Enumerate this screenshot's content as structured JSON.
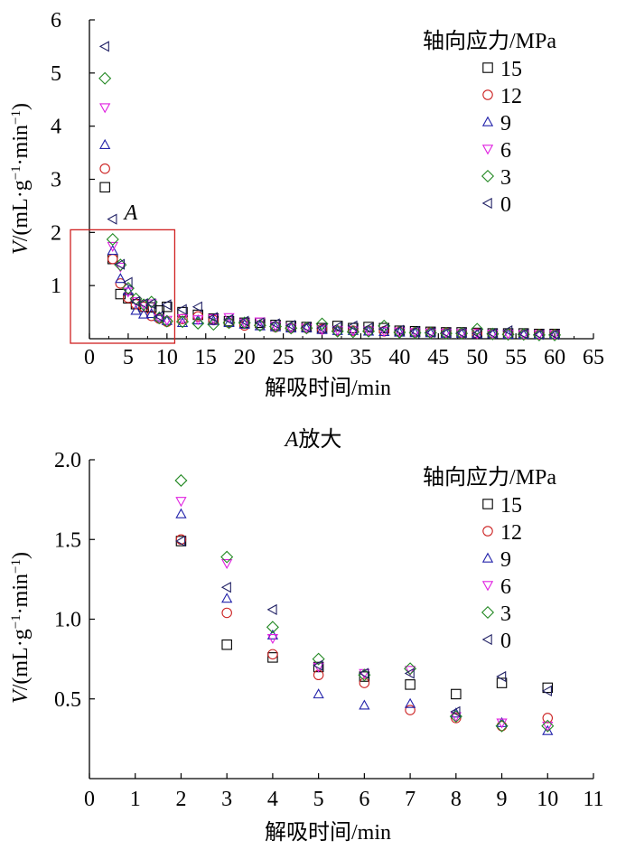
{
  "chart_data": [
    {
      "type": "scatter",
      "title": "",
      "xlabel": "解吸时间/min",
      "ylabel": "V/(mL·g⁻¹·min⁻¹)",
      "xlim": [
        0,
        65
      ],
      "ylim": [
        0,
        6
      ],
      "x_ticks": [
        "0",
        "5",
        "10",
        "15",
        "20",
        "25",
        "30",
        "35",
        "40",
        "45",
        "50",
        "55",
        "60",
        "65"
      ],
      "y_ticks": [
        "1",
        "2",
        "3",
        "4",
        "5",
        "6"
      ],
      "legend_title": "轴向应力/MPa",
      "legend_position": "top-right",
      "inset_label": "A",
      "inset_box": {
        "x": [
          0,
          11
        ],
        "y": [
          0,
          2.05
        ]
      },
      "series": [
        {
          "name": "15",
          "marker": "square",
          "color": "#000000",
          "x": [
            2,
            3,
            4,
            5,
            6,
            7,
            8,
            9,
            10,
            12,
            14,
            16,
            18,
            20,
            22,
            24,
            26,
            28,
            30,
            32,
            34,
            36,
            38,
            40,
            42,
            44,
            46,
            48,
            50,
            52,
            54,
            56,
            58,
            60
          ],
          "y": [
            2.85,
            1.5,
            0.84,
            0.76,
            0.65,
            0.6,
            0.59,
            0.53,
            0.6,
            0.5,
            0.45,
            0.38,
            0.33,
            0.3,
            0.3,
            0.26,
            0.24,
            0.22,
            0.2,
            0.24,
            0.2,
            0.22,
            0.2,
            0.15,
            0.14,
            0.13,
            0.12,
            0.12,
            0.11,
            0.1,
            0.1,
            0.1,
            0.09,
            0.09
          ]
        },
        {
          "name": "12",
          "marker": "circle",
          "color": "#cc2222",
          "x": [
            2,
            3,
            4,
            5,
            6,
            7,
            8,
            9,
            10,
            12,
            14,
            16,
            18,
            20,
            22,
            24,
            26,
            28,
            30,
            32,
            34,
            36,
            38,
            40,
            42,
            44,
            46,
            48,
            50,
            52,
            54,
            56,
            58,
            60
          ],
          "y": [
            3.2,
            1.5,
            1.04,
            0.77,
            0.65,
            0.6,
            0.43,
            0.38,
            0.32,
            0.37,
            0.42,
            0.35,
            0.3,
            0.25,
            0.25,
            0.22,
            0.2,
            0.2,
            0.18,
            0.15,
            0.15,
            0.15,
            0.14,
            0.13,
            0.12,
            0.12,
            0.11,
            0.1,
            0.1,
            0.09,
            0.09,
            0.08,
            0.08,
            0.08
          ]
        },
        {
          "name": "9",
          "marker": "triangle-up",
          "color": "#2222aa",
          "x": [
            2,
            3,
            4,
            5,
            6,
            7,
            8,
            9,
            10,
            12,
            14,
            16,
            18,
            20,
            22,
            24,
            26,
            28,
            30,
            32,
            34,
            36,
            38,
            40,
            42,
            44,
            46,
            48,
            50,
            52,
            54,
            56,
            58,
            60
          ],
          "y": [
            3.65,
            1.66,
            1.13,
            0.9,
            0.53,
            0.46,
            0.47,
            0.41,
            0.34,
            0.3,
            0.35,
            0.34,
            0.3,
            0.27,
            0.24,
            0.22,
            0.2,
            0.2,
            0.17,
            0.15,
            0.15,
            0.14,
            0.13,
            0.12,
            0.11,
            0.11,
            0.1,
            0.1,
            0.09,
            0.09,
            0.08,
            0.08,
            0.08,
            0.08
          ]
        },
        {
          "name": "6",
          "marker": "triangle-down",
          "color": "#e020e0",
          "x": [
            2,
            3,
            4,
            5,
            6,
            7,
            8,
            9,
            10,
            12,
            14,
            16,
            18,
            20,
            22,
            24,
            26,
            28,
            30,
            32,
            34,
            36,
            38,
            40,
            42,
            44,
            46,
            48,
            50,
            52,
            54,
            56,
            58,
            60
          ],
          "y": [
            4.35,
            1.74,
            1.35,
            0.88,
            0.7,
            0.65,
            0.66,
            0.38,
            0.35,
            0.38,
            0.36,
            0.38,
            0.4,
            0.3,
            0.32,
            0.24,
            0.2,
            0.2,
            0.17,
            0.16,
            0.15,
            0.15,
            0.14,
            0.13,
            0.12,
            0.11,
            0.11,
            0.1,
            0.1,
            0.09,
            0.09,
            0.08,
            0.08,
            0.08
          ]
        },
        {
          "name": "3",
          "marker": "diamond",
          "color": "#228822",
          "x": [
            2,
            3,
            4,
            5,
            6,
            7,
            8,
            9,
            10,
            12,
            14,
            16,
            18,
            20,
            22,
            24,
            26,
            28,
            30,
            32,
            34,
            36,
            38,
            40,
            42,
            44,
            46,
            48,
            50,
            52,
            54,
            56,
            58,
            60
          ],
          "y": [
            4.9,
            1.87,
            1.39,
            0.95,
            0.75,
            0.64,
            0.69,
            0.39,
            0.33,
            0.32,
            0.29,
            0.27,
            0.3,
            0.3,
            0.25,
            0.23,
            0.2,
            0.2,
            0.28,
            0.14,
            0.13,
            0.14,
            0.24,
            0.12,
            0.11,
            0.11,
            0.1,
            0.1,
            0.18,
            0.09,
            0.08,
            0.08,
            0.07,
            0.07
          ]
        },
        {
          "name": "0",
          "marker": "triangle-left",
          "color": "#222266",
          "x": [
            2,
            3,
            4,
            5,
            6,
            7,
            8,
            9,
            10,
            12,
            14,
            16,
            18,
            20,
            22,
            24,
            26,
            28,
            30,
            32,
            34,
            36,
            38,
            40,
            42,
            44,
            46,
            48,
            50,
            52,
            54,
            56,
            58,
            60
          ],
          "y": [
            5.5,
            2.25,
            1.4,
            1.06,
            0.7,
            0.66,
            0.66,
            0.42,
            0.64,
            0.55,
            0.6,
            0.4,
            0.36,
            0.33,
            0.3,
            0.28,
            0.25,
            0.22,
            0.2,
            0.22,
            0.24,
            0.2,
            0.18,
            0.16,
            0.14,
            0.12,
            0.11,
            0.11,
            0.1,
            0.1,
            0.15,
            0.09,
            0.08,
            0.08
          ]
        }
      ]
    },
    {
      "type": "scatter",
      "title": "A放大",
      "xlabel": "解吸时间/min",
      "ylabel": "V/(mL·g⁻¹·min⁻¹)",
      "xlim": [
        0,
        11
      ],
      "ylim": [
        0,
        2.0
      ],
      "x_ticks": [
        "0",
        "1",
        "2",
        "3",
        "4",
        "5",
        "6",
        "7",
        "8",
        "9",
        "10",
        "11"
      ],
      "y_ticks": [
        "0.5",
        "1.0",
        "1.5",
        "2.0"
      ],
      "legend_title": "轴向应力/MPa",
      "legend_position": "top-right",
      "series": [
        {
          "name": "15",
          "marker": "square",
          "color": "#000000",
          "x": [
            2,
            3,
            4,
            5,
            6,
            7,
            8,
            9,
            10
          ],
          "y": [
            1.49,
            0.84,
            0.76,
            0.7,
            0.64,
            0.59,
            0.53,
            0.6,
            0.57
          ]
        },
        {
          "name": "12",
          "marker": "circle",
          "color": "#cc2222",
          "x": [
            2,
            3,
            4,
            5,
            6,
            7,
            8,
            9,
            10
          ],
          "y": [
            1.5,
            1.04,
            0.78,
            0.65,
            0.6,
            0.43,
            0.38,
            0.33,
            0.38
          ]
        },
        {
          "name": "9",
          "marker": "triangle-up",
          "color": "#2222aa",
          "x": [
            2,
            3,
            4,
            5,
            6,
            7,
            8,
            9,
            10
          ],
          "y": [
            1.66,
            1.13,
            0.9,
            0.53,
            0.46,
            0.47,
            0.41,
            0.35,
            0.3
          ]
        },
        {
          "name": "6",
          "marker": "triangle-down",
          "color": "#e020e0",
          "x": [
            2,
            3,
            4,
            5,
            6,
            7,
            8,
            9,
            10
          ],
          "y": [
            1.74,
            1.35,
            0.88,
            0.7,
            0.66,
            0.68,
            0.39,
            0.35,
            0.33
          ]
        },
        {
          "name": "3",
          "marker": "diamond",
          "color": "#228822",
          "x": [
            2,
            3,
            4,
            5,
            6,
            7,
            8,
            9,
            10
          ],
          "y": [
            1.87,
            1.39,
            0.95,
            0.75,
            0.65,
            0.69,
            0.39,
            0.33,
            0.33
          ]
        },
        {
          "name": "0",
          "marker": "triangle-left",
          "color": "#222266",
          "x": [
            2,
            3,
            4,
            5,
            6,
            7,
            8,
            9,
            10
          ],
          "y": [
            1.49,
            1.2,
            1.06,
            0.71,
            0.66,
            0.66,
            0.42,
            0.64,
            0.55
          ]
        }
      ]
    }
  ]
}
